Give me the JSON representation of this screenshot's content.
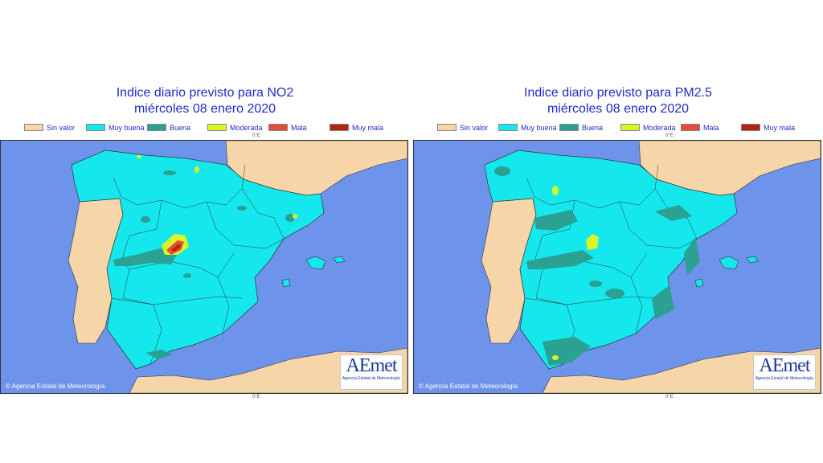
{
  "panels": [
    {
      "title_line1": "Indice diario previsto para NO2",
      "title_line2": "miércoles 08 enero 2020",
      "legend": [
        {
          "label": "Sin valor",
          "color": "#f6d5a8"
        },
        {
          "label": "Muy buena",
          "color": "#14e8ec"
        },
        {
          "label": "Buena",
          "color": "#2aa192"
        },
        {
          "label": "Moderada",
          "color": "#d8f528"
        },
        {
          "label": "Mala",
          "color": "#e84a3a"
        },
        {
          "label": "Muy mala",
          "color": "#b02410"
        }
      ],
      "tick_top": "0°E",
      "tick_bottom": "0°E",
      "copyright": "© Agencia Estatal de Meteorología",
      "logo_text": "AEmet",
      "logo_subtitle": "Agencia Estatal de Meteorología"
    },
    {
      "title_line1": "Indice diario previsto para PM2.5",
      "title_line2": "miércoles 08 enero 2020",
      "legend": [
        {
          "label": "Sin valor",
          "color": "#f6d5a8"
        },
        {
          "label": "Muy buena",
          "color": "#14e8ec"
        },
        {
          "label": "Buena",
          "color": "#2aa192"
        },
        {
          "label": "Moderada",
          "color": "#d8f528"
        },
        {
          "label": "Mala",
          "color": "#e84a3a"
        },
        {
          "label": "Muy mala",
          "color": "#b02410"
        }
      ],
      "tick_top": "0°E",
      "tick_bottom": "0°E",
      "copyright": "© Agencia Estatal de Meteorología",
      "logo_text": "AEmet",
      "logo_subtitle": "Agencia Estatal de Meteorología"
    }
  ],
  "colors": {
    "sea": "#6d93ea",
    "land_other": "#f6d5a8",
    "spain_base": "#14e8ec",
    "buena": "#2aa192",
    "moderada": "#d8f528",
    "mala": "#e84a3a",
    "muy_mala": "#b02410",
    "title": "#1f2bc8"
  }
}
